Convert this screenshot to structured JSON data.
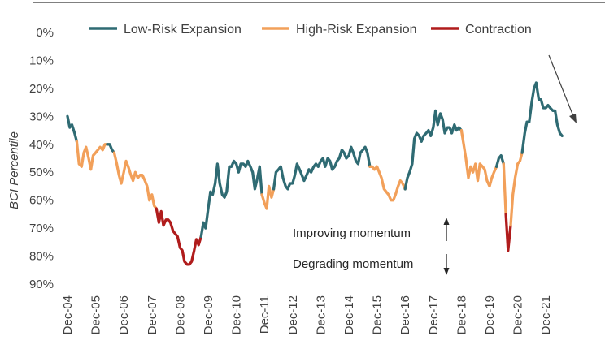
{
  "chart_data": {
    "type": "line",
    "ylabel": "BCI Percentile",
    "y_inverted": true,
    "ylim": [
      0,
      90
    ],
    "y_ticks": [
      "0%",
      "10%",
      "20%",
      "30%",
      "40%",
      "50%",
      "60%",
      "70%",
      "80%",
      "90%"
    ],
    "x_ticks": [
      "Dec-04",
      "Dec-05",
      "Dec-06",
      "Dec-07",
      "Dec-08",
      "Dec-09",
      "Dec-10",
      "Dec-11",
      "Dec-12",
      "Dec-13",
      "Dec-14",
      "Dec-15",
      "Dec-16",
      "Dec-17",
      "Dec-18",
      "Dec-19",
      "Dec-20",
      "Dec-21"
    ],
    "legend_position": "top",
    "series": [
      {
        "name": "Low-Risk Expansion",
        "color": "#2f6b73"
      },
      {
        "name": "High-Risk Expansion",
        "color": "#f2a05a"
      },
      {
        "name": "Contraction",
        "color": "#b01c1c"
      }
    ],
    "segments": [
      {
        "regime": 0,
        "x": [
          2004.92,
          2005.0,
          2005.08,
          2005.17,
          2005.25
        ],
        "y": [
          30,
          34,
          33,
          36,
          39
        ]
      },
      {
        "regime": 1,
        "x": [
          2005.25,
          2005.33,
          2005.42,
          2005.5,
          2005.58,
          2005.67,
          2005.75,
          2005.83,
          2005.92,
          2006.0,
          2006.08,
          2006.17,
          2006.25,
          2006.33
        ],
        "y": [
          39,
          47,
          48,
          43,
          41,
          45,
          49,
          44,
          43,
          42,
          41,
          42,
          40,
          40
        ]
      },
      {
        "regime": 0,
        "x": [
          2006.33,
          2006.42,
          2006.5,
          2006.58
        ],
        "y": [
          40,
          40,
          42,
          43
        ]
      },
      {
        "regime": 1,
        "x": [
          2006.58,
          2006.67,
          2006.75,
          2006.83,
          2006.92,
          2007.0,
          2007.08,
          2007.17,
          2007.25,
          2007.33,
          2007.42,
          2007.5,
          2007.58,
          2007.67,
          2007.75,
          2007.83,
          2007.92,
          2008.0,
          2008.08
        ],
        "y": [
          43,
          47,
          51,
          54,
          50,
          46,
          48,
          51,
          53,
          50,
          52,
          51,
          51,
          53,
          55,
          60,
          58,
          62,
          63
        ]
      },
      {
        "regime": 2,
        "x": [
          2008.08,
          2008.17,
          2008.25,
          2008.33,
          2008.42,
          2008.5,
          2008.58,
          2008.67,
          2008.75,
          2008.83,
          2008.92,
          2009.0,
          2009.08,
          2009.17,
          2009.25,
          2009.33,
          2009.42,
          2009.5,
          2009.58,
          2009.67
        ],
        "y": [
          63,
          68,
          64,
          69,
          67,
          67,
          68,
          71,
          72,
          73,
          77,
          78,
          82,
          83,
          83,
          82,
          78,
          74,
          76,
          73
        ]
      },
      {
        "regime": 0,
        "x": [
          2009.67,
          2009.75,
          2009.83,
          2009.92,
          2010.0,
          2010.08,
          2010.17,
          2010.25,
          2010.33,
          2010.42,
          2010.5,
          2010.58,
          2010.67,
          2010.75,
          2010.83,
          2010.92,
          2011.0,
          2011.08,
          2011.17,
          2011.25,
          2011.33,
          2011.42,
          2011.5,
          2011.58,
          2011.67,
          2011.75,
          2011.83
        ],
        "y": [
          73,
          68,
          70,
          63,
          57,
          58,
          54,
          47,
          54,
          58,
          59,
          57,
          48,
          48,
          46,
          47,
          50,
          47,
          47,
          48,
          46,
          48,
          50,
          56,
          52,
          48,
          58
        ]
      },
      {
        "regime": 1,
        "x": [
          2011.83,
          2011.92,
          2012.0,
          2012.08,
          2012.17,
          2012.25
        ],
        "y": [
          58,
          61,
          63,
          55,
          59,
          56
        ]
      },
      {
        "regime": 0,
        "x": [
          2012.25,
          2012.33,
          2012.42,
          2012.5,
          2012.58,
          2012.67,
          2012.75,
          2012.83,
          2012.92,
          2013.0,
          2013.08,
          2013.17,
          2013.25,
          2013.33,
          2013.42,
          2013.5,
          2013.58,
          2013.67,
          2013.75,
          2013.83,
          2013.92,
          2014.0,
          2014.08,
          2014.17,
          2014.25,
          2014.33,
          2014.42,
          2014.5,
          2014.58,
          2014.67,
          2014.75,
          2014.83,
          2014.92,
          2015.0,
          2015.08,
          2015.17,
          2015.25,
          2015.33,
          2015.42,
          2015.5,
          2015.58,
          2015.67
        ],
        "y": [
          56,
          50,
          49,
          48,
          52,
          55,
          56,
          54,
          54,
          51,
          47,
          49,
          51,
          53,
          51,
          49,
          50,
          48,
          47,
          48,
          46,
          45,
          48,
          45,
          46,
          49,
          48,
          46,
          45,
          42,
          43,
          45,
          44,
          41,
          43,
          46,
          47,
          43,
          42,
          41,
          43,
          48
        ]
      },
      {
        "regime": 1,
        "x": [
          2015.67,
          2015.75,
          2015.83,
          2015.92,
          2016.0,
          2016.08,
          2016.17,
          2016.25,
          2016.33,
          2016.42,
          2016.5,
          2016.58,
          2016.67,
          2016.75,
          2016.83,
          2016.92
        ],
        "y": [
          48,
          48,
          49,
          48,
          50,
          52,
          56,
          57,
          58,
          60,
          60,
          58,
          55,
          53,
          54,
          56
        ]
      },
      {
        "regime": 0,
        "x": [
          2016.92,
          2017.0,
          2017.08,
          2017.17,
          2017.25,
          2017.33,
          2017.42,
          2017.5,
          2017.58,
          2017.67,
          2017.75,
          2017.83,
          2017.92,
          2018.0,
          2018.08,
          2018.17,
          2018.25,
          2018.33,
          2018.42,
          2018.5,
          2018.58,
          2018.67,
          2018.75,
          2018.83,
          2018.92
        ],
        "y": [
          56,
          52,
          50,
          47,
          38,
          36,
          37,
          39,
          37,
          36,
          35,
          37,
          34,
          28,
          33,
          29,
          31,
          36,
          34,
          34,
          36,
          33,
          35,
          34,
          35
        ]
      },
      {
        "regime": 1,
        "x": [
          2018.92,
          2019.0,
          2019.08,
          2019.17,
          2019.25,
          2019.33,
          2019.42,
          2019.5,
          2019.58,
          2019.67,
          2019.75,
          2019.83,
          2019.92,
          2020.0,
          2020.08,
          2020.17
        ],
        "y": [
          35,
          40,
          45,
          52,
          48,
          50,
          47,
          53,
          47,
          48,
          49,
          53,
          55,
          52,
          50,
          48
        ]
      },
      {
        "regime": 0,
        "x": [
          2020.17,
          2020.25,
          2020.33,
          2020.42
        ],
        "y": [
          48,
          45,
          44,
          47
        ]
      },
      {
        "regime": 1,
        "x": [
          2020.42,
          2020.5
        ],
        "y": [
          47,
          65
        ]
      },
      {
        "regime": 2,
        "x": [
          2020.5,
          2020.58,
          2020.67
        ],
        "y": [
          65,
          78,
          69
        ]
      },
      {
        "regime": 1,
        "x": [
          2020.67,
          2020.75,
          2020.83,
          2020.92,
          2021.0,
          2021.08
        ],
        "y": [
          69,
          58,
          52,
          47,
          46,
          43
        ]
      },
      {
        "regime": 0,
        "x": [
          2021.08,
          2021.17,
          2021.25,
          2021.33,
          2021.42,
          2021.5,
          2021.58,
          2021.67,
          2021.75,
          2021.83,
          2021.92,
          2022.0,
          2022.08,
          2022.17,
          2022.25,
          2022.33,
          2022.42,
          2022.5
        ],
        "y": [
          43,
          36,
          32,
          32,
          25,
          20,
          18,
          24,
          24,
          27,
          27,
          26,
          27,
          28,
          28,
          33,
          36,
          37
        ]
      }
    ],
    "annotations": {
      "improving": "Improving momentum",
      "degrading": "Degrading momentum"
    }
  }
}
